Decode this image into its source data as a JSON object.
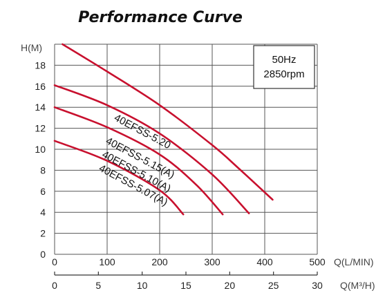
{
  "chart_data": {
    "type": "line",
    "title": "Performance Curve",
    "ylabel": "H(M)",
    "xlabel": "Q(L/MIN)",
    "xlabel2": "Q(M³/H)",
    "ylim": [
      0,
      20
    ],
    "xlim": [
      0,
      500
    ],
    "x2lim": [
      0,
      30
    ],
    "yticks": [
      "0",
      "2",
      "4",
      "6",
      "8",
      "10",
      "12",
      "14",
      "16",
      "18"
    ],
    "xticks": [
      "0",
      "100",
      "200",
      "300",
      "400",
      "500"
    ],
    "x2ticks": [
      "0",
      "5",
      "10",
      "15",
      "20",
      "25",
      "30"
    ],
    "grid": true,
    "info_box": [
      "50Hz",
      "2850rpm"
    ],
    "line_color": "#c8102e",
    "series": [
      {
        "name": "40EFSS-5.20",
        "x": [
          15,
          100,
          200,
          300,
          350,
          415
        ],
        "y": [
          20,
          17.4,
          14.2,
          10.4,
          8.2,
          5.2
        ]
      },
      {
        "name": "40EFSS-5.15(A)",
        "x": [
          0,
          100,
          200,
          300,
          370
        ],
        "y": [
          16.1,
          14.2,
          11.5,
          7.6,
          3.9
        ]
      },
      {
        "name": "40EFSS-5.10(A)",
        "x": [
          0,
          100,
          200,
          270,
          320
        ],
        "y": [
          14,
          12.1,
          9.5,
          6.6,
          3.8
        ]
      },
      {
        "name": "40EFSS-5.07(A)",
        "x": [
          0,
          100,
          200,
          245
        ],
        "y": [
          10.8,
          8.9,
          6.1,
          3.8
        ]
      }
    ]
  }
}
